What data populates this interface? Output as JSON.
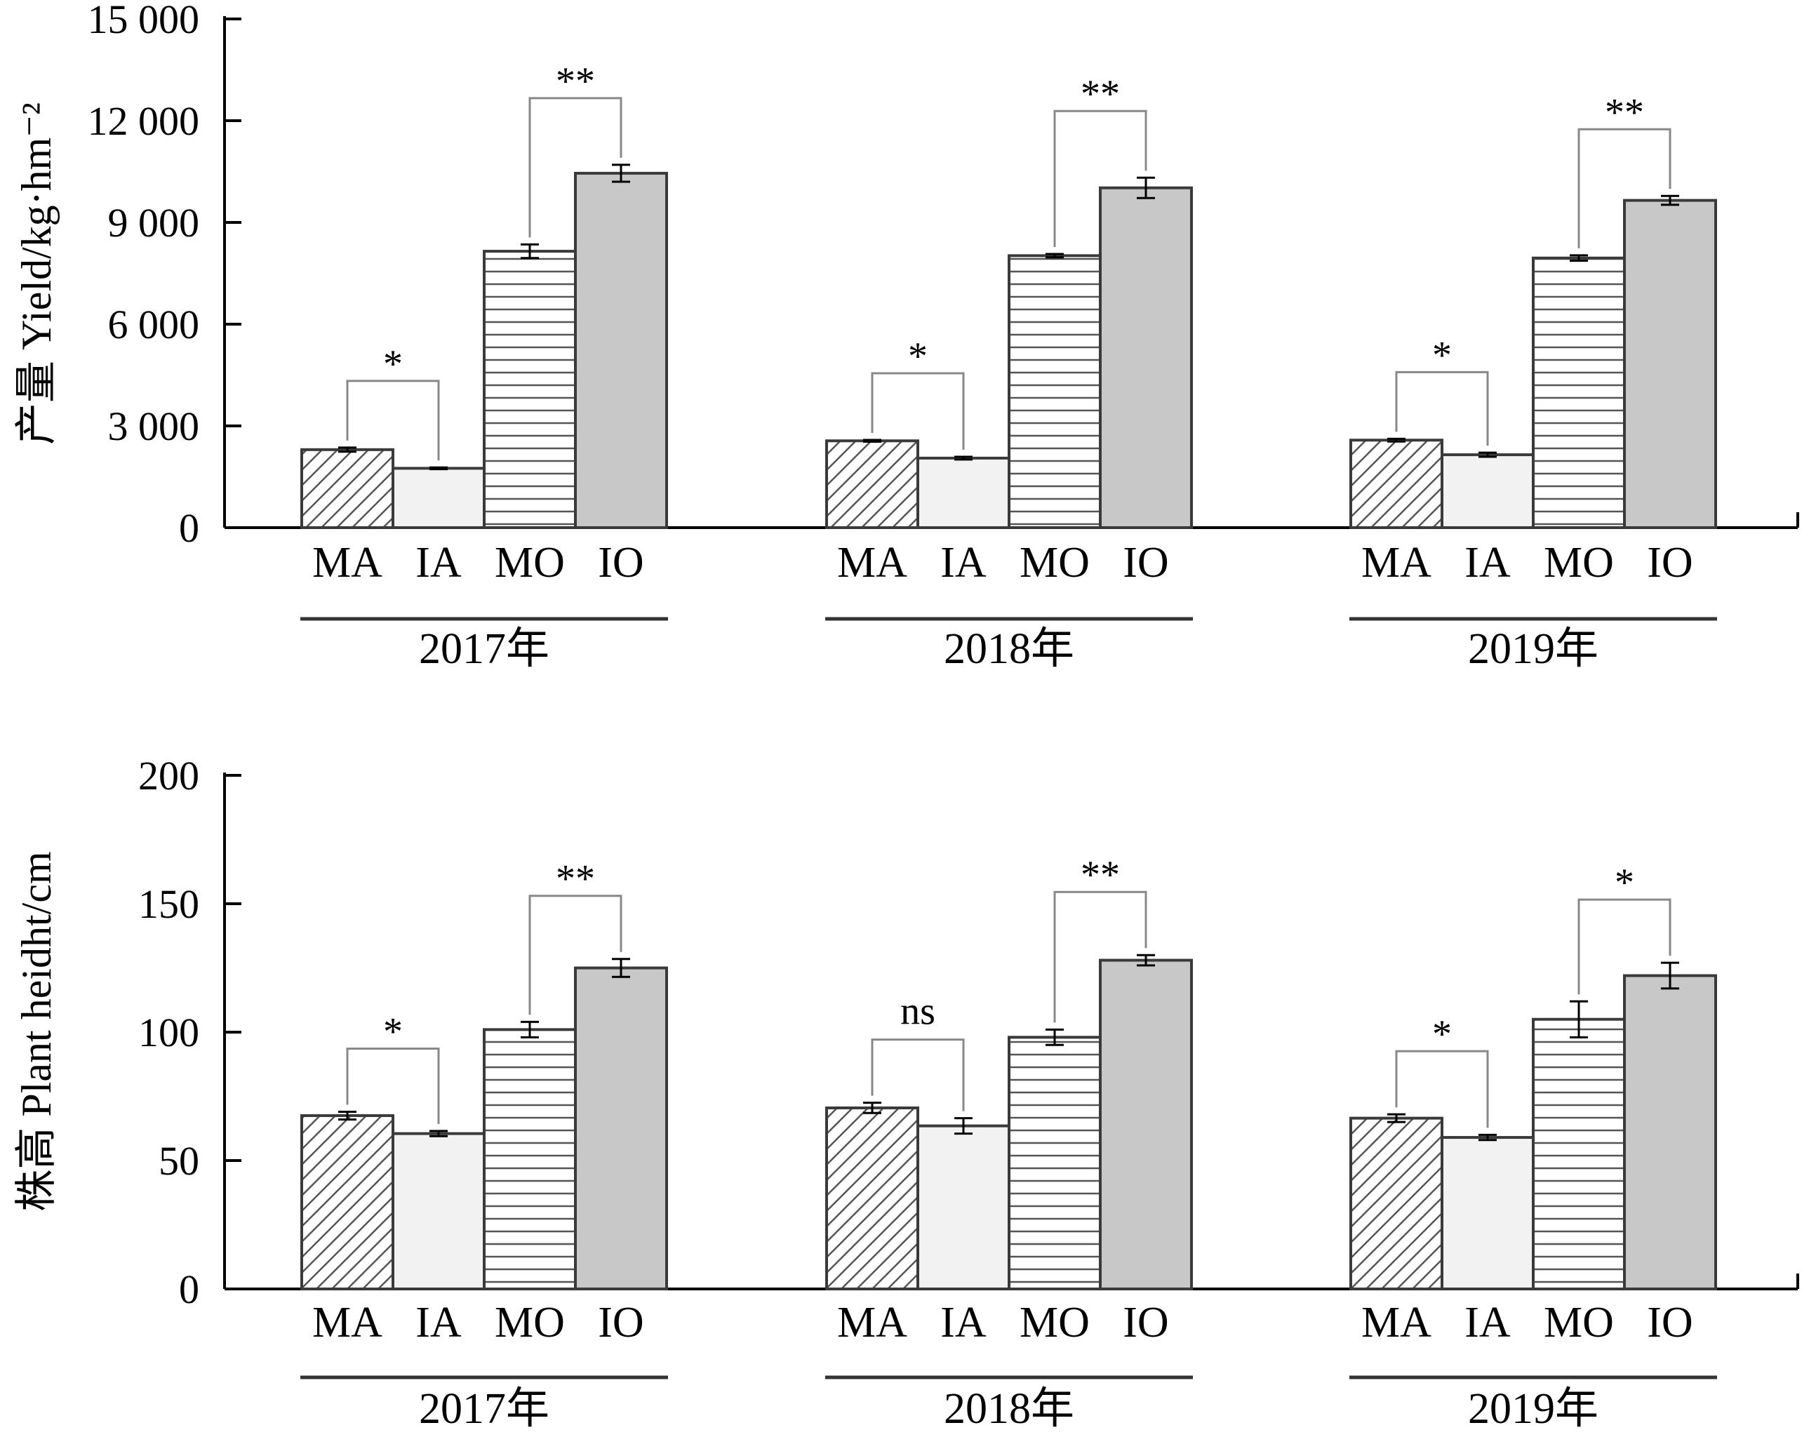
{
  "treatments": [
    {
      "code": "MA",
      "pattern": "diag"
    },
    {
      "code": "IA",
      "pattern": "lightfill"
    },
    {
      "code": "MO",
      "pattern": "hlines"
    },
    {
      "code": "IO",
      "pattern": "grayfill"
    }
  ],
  "colors": {
    "axis": "#000000",
    "bar_outline": "#3a3a3a",
    "ia_fill": "#f2f2f2",
    "io_fill": "#c8c8c8",
    "pattern_line": "#555555",
    "bracket": "#888888"
  },
  "chart_data": [
    {
      "type": "bar",
      "ylabel": "产量 Yield/kg·hm⁻²",
      "ylim": [
        0,
        15000
      ],
      "yticks": [
        0,
        3000,
        6000,
        9000,
        12000,
        15000
      ],
      "ytick_labels": [
        "0",
        "3 000",
        "6 000",
        "9 000",
        "12 000",
        "15 000"
      ],
      "groups": [
        {
          "year_label": "2017年",
          "values": [
            2300,
            1750,
            8150,
            10450
          ],
          "errors": [
            60,
            25,
            200,
            250
          ],
          "sig": [
            {
              "label": "*",
              "pair": [
                0,
                1
              ]
            },
            {
              "label": "**",
              "pair": [
                2,
                3
              ]
            }
          ]
        },
        {
          "year_label": "2018年",
          "values": [
            2560,
            2050,
            8020,
            10020
          ],
          "errors": [
            25,
            40,
            50,
            300
          ],
          "sig": [
            {
              "label": "*",
              "pair": [
                0,
                1
              ]
            },
            {
              "label": "**",
              "pair": [
                2,
                3
              ]
            }
          ]
        },
        {
          "year_label": "2019年",
          "values": [
            2580,
            2150,
            7950,
            9650
          ],
          "errors": [
            40,
            60,
            80,
            130
          ],
          "sig": [
            {
              "label": "*",
              "pair": [
                0,
                1
              ]
            },
            {
              "label": "**",
              "pair": [
                2,
                3
              ]
            }
          ]
        }
      ]
    },
    {
      "type": "bar",
      "ylabel": "株高 Plant heidht/cm",
      "ylim": [
        0,
        200
      ],
      "yticks": [
        0,
        50,
        100,
        150,
        200
      ],
      "ytick_labels": [
        "0",
        "50",
        "100",
        "150",
        "200"
      ],
      "groups": [
        {
          "year_label": "2017年",
          "values": [
            67.5,
            60.5,
            101,
            125
          ],
          "errors": [
            1.5,
            1,
            3,
            3.5
          ],
          "sig": [
            {
              "label": "*",
              "pair": [
                0,
                1
              ]
            },
            {
              "label": "**",
              "pair": [
                2,
                3
              ]
            }
          ]
        },
        {
          "year_label": "2018年",
          "values": [
            70.5,
            63.5,
            98,
            128
          ],
          "errors": [
            2,
            3,
            3,
            2
          ],
          "sig": [
            {
              "label": "ns",
              "pair": [
                0,
                1
              ]
            },
            {
              "label": "**",
              "pair": [
                2,
                3
              ]
            }
          ]
        },
        {
          "year_label": "2019年",
          "values": [
            66.5,
            59,
            105,
            122
          ],
          "errors": [
            1.5,
            1,
            7,
            5
          ],
          "sig": [
            {
              "label": "*",
              "pair": [
                0,
                1
              ]
            },
            {
              "label": "*",
              "pair": [
                2,
                3
              ]
            }
          ]
        }
      ]
    }
  ]
}
